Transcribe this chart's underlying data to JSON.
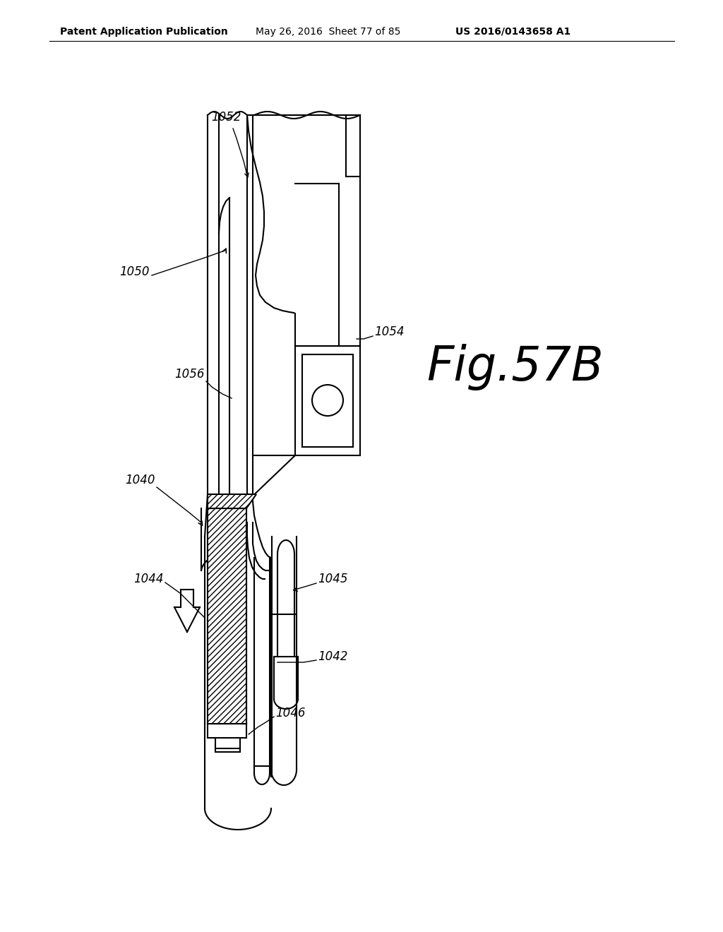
{
  "background_color": "#ffffff",
  "header_left": "Patent Application Publication",
  "header_middle": "May 26, 2016  Sheet 77 of 85",
  "header_right": "US 2016/0143658 A1",
  "figure_label": "Fig.57B"
}
